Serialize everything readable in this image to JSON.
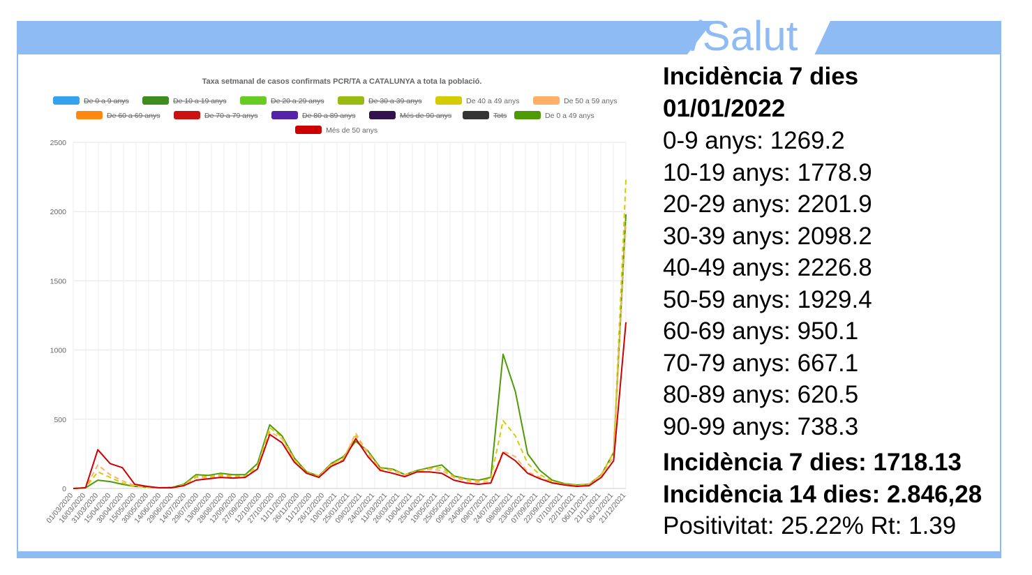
{
  "brand": {
    "logo_text": "/Salut",
    "accent_color": "#8fbbf5"
  },
  "stats": {
    "heading_line1": "Incidència 7 dies",
    "heading_line2": "01/01/2022",
    "age_rows": [
      "0-9 anys: 1269.2",
      "10-19 anys: 1778.9",
      "20-29 anys: 2201.9",
      "30-39 anys: 2098.2",
      "40-49 anys: 2226.8",
      "50-59 anys: 1929.4",
      "60-69 anys: 950.1",
      "70-79 anys: 667.1",
      "80-89 anys: 620.5",
      "90-99 anys: 738.3"
    ],
    "incidence_7": "Incidència 7 dies: 1718.13",
    "incidence_14": "Incidència 14 dies: 2.846,28",
    "positivity": "Positivitat: 25.22% Rt: 1.39"
  },
  "chart_data": {
    "type": "line",
    "title": "Taxa setmanal de casos confirmats PCR/TA a CATALUNYA a tota la població.",
    "ylim": [
      0,
      2500
    ],
    "y_ticks": [
      0,
      500,
      1000,
      1500,
      2000,
      2500
    ],
    "grid": true,
    "legend_position": "top",
    "legend": [
      {
        "name": "De 0 a 9 anys",
        "color": "#36a2eb",
        "hidden": true
      },
      {
        "name": "De 10 a 19 anys",
        "color": "#3d8c1e",
        "hidden": true
      },
      {
        "name": "De 20 a 29 anys",
        "color": "#66cc22",
        "hidden": true
      },
      {
        "name": "De 30 a 39 anys",
        "color": "#99bb11",
        "hidden": true
      },
      {
        "name": "De 40 a 49 anys",
        "color": "#d4cc00",
        "hidden": false
      },
      {
        "name": "De 50 a 59 anys",
        "color": "#ffb066",
        "hidden": false
      },
      {
        "name": "De 60 a 69 anys",
        "color": "#ff8811",
        "hidden": true
      },
      {
        "name": "De 70 a 79 anys",
        "color": "#cc1111",
        "hidden": true
      },
      {
        "name": "De 80 a 89 anys",
        "color": "#5522aa",
        "hidden": true
      },
      {
        "name": "Més de 90 anys",
        "color": "#33114d",
        "hidden": true
      },
      {
        "name": "Tots",
        "color": "#333333",
        "hidden": true
      },
      {
        "name": "De 0 a 49 anys",
        "color": "#4e9a06",
        "hidden": false
      },
      {
        "name": "Més de 50 anys",
        "color": "#cc0000",
        "hidden": false
      }
    ],
    "x_tick_labels": [
      "01/03/2020",
      "16/03/2020",
      "31/03/2020",
      "15/04/2020",
      "30/04/2020",
      "15/05/2020",
      "30/05/2020",
      "14/06/2020",
      "29/06/2020",
      "14/07/2020",
      "29/07/2020",
      "13/08/2020",
      "28/08/2020",
      "12/09/2020",
      "27/09/2020",
      "12/10/2020",
      "27/10/2020",
      "11/11/2020",
      "26/11/2020",
      "11/12/2020",
      "26/12/2020",
      "10/01/2021",
      "25/01/2021",
      "09/02/2021",
      "24/02/2021",
      "11/03/2021",
      "26/03/2021",
      "10/04/2021",
      "25/04/2021",
      "10/05/2021",
      "25/05/2021",
      "09/06/2021",
      "24/06/2021",
      "09/07/2021",
      "24/07/2021",
      "08/08/2021",
      "23/08/2021",
      "07/09/2021",
      "22/09/2021",
      "07/10/2021",
      "22/10/2021",
      "06/11/2021",
      "21/11/2021",
      "06/12/2021",
      "21/12/2021"
    ],
    "series": [
      {
        "name": "De 0 a 49 anys",
        "color": "#4e9a06",
        "dashed": false,
        "values": [
          0,
          5,
          60,
          50,
          30,
          15,
          10,
          5,
          8,
          30,
          100,
          95,
          110,
          100,
          100,
          180,
          460,
          380,
          220,
          120,
          90,
          180,
          230,
          340,
          270,
          150,
          140,
          100,
          130,
          150,
          170,
          90,
          70,
          60,
          80,
          970,
          700,
          250,
          130,
          60,
          35,
          25,
          30,
          100,
          260,
          1980
        ]
      },
      {
        "name": "De 40 a 49 anys",
        "color": "#d4cc00",
        "dashed": true,
        "values": [
          0,
          5,
          120,
          80,
          40,
          15,
          10,
          5,
          8,
          25,
          90,
          85,
          100,
          90,
          90,
          160,
          440,
          370,
          210,
          115,
          90,
          175,
          220,
          380,
          260,
          145,
          135,
          100,
          125,
          145,
          150,
          85,
          65,
          55,
          70,
          490,
          380,
          180,
          100,
          50,
          30,
          22,
          28,
          100,
          260,
          2230
        ]
      },
      {
        "name": "De 50 a 59 anys",
        "color": "#ffb066",
        "dashed": true,
        "values": [
          0,
          5,
          170,
          100,
          55,
          20,
          12,
          5,
          8,
          22,
          80,
          75,
          90,
          80,
          85,
          150,
          410,
          360,
          200,
          110,
          85,
          170,
          210,
          400,
          250,
          140,
          130,
          95,
          120,
          140,
          130,
          80,
          55,
          45,
          50,
          270,
          230,
          120,
          80,
          45,
          28,
          20,
          25,
          95,
          230,
          1930
        ]
      },
      {
        "name": "Més de 50 anys",
        "color": "#cc0000",
        "dashed": false,
        "values": [
          0,
          5,
          280,
          180,
          150,
          30,
          15,
          5,
          5,
          20,
          60,
          70,
          80,
          75,
          80,
          140,
          390,
          330,
          190,
          110,
          80,
          160,
          200,
          360,
          230,
          130,
          110,
          85,
          120,
          120,
          110,
          60,
          40,
          30,
          40,
          260,
          200,
          110,
          70,
          40,
          25,
          15,
          20,
          80,
          200,
          1200
        ]
      }
    ]
  }
}
